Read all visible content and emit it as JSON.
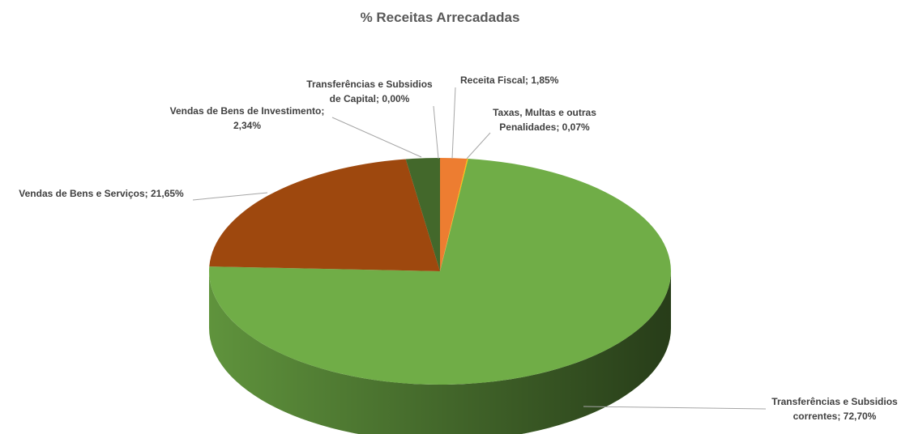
{
  "chart_data": {
    "type": "pie3d",
    "title": "% Receitas Arrecadadas",
    "values": [
      1.85,
      0.07,
      72.7,
      21.65,
      2.34,
      0.0
    ],
    "value_labels": [
      "Receita Fiscal; 1,85%",
      "Taxas, Multas e outras Penalidades; 0,07%",
      "Transferências e Subsidios correntes; 72,70%",
      "Vendas de Bens e Serviços; 21,65%",
      "Vendas de Bens de Investimento; 2,34%",
      "Transferências e Subsidios de Capital; 0,00%"
    ],
    "colors": [
      "#ed7d31",
      "#ffc000",
      "#70ad47",
      "#9e480e",
      "#43682b",
      "#a5a5a5"
    ]
  }
}
